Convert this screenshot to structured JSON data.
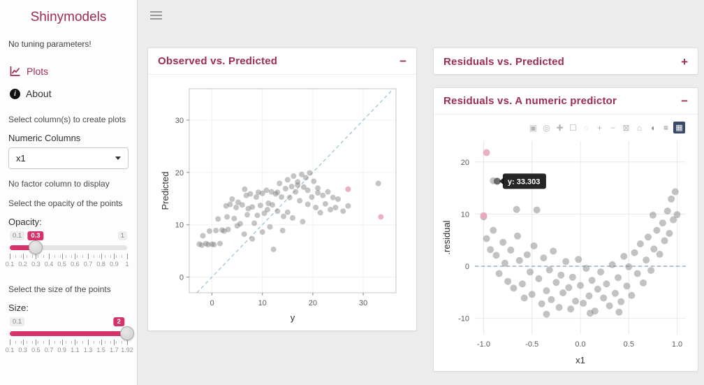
{
  "colors": {
    "accent": "#9e2b56",
    "slider": "#d6336c",
    "plotly_logo": "#3b4a6b"
  },
  "sidebar": {
    "title": "Shinymodels",
    "no_tuning_text": "No tuning parameters!",
    "nav_plots": "Plots",
    "nav_about": "About",
    "select_columns_text": "Select column(s) to create plots",
    "numeric_columns_label": "Numeric Columns",
    "numeric_select_value": "x1",
    "no_factor_text": "No factor column to display",
    "opacity_help_text": "Select the opacity of the points",
    "opacity_label": "Opacity:",
    "opacity_slider": {
      "min_label": "0.1",
      "max_label": "1",
      "value": "0.3",
      "percent": 22,
      "ticks": [
        "0.1",
        "0.2",
        "0.3",
        "0.4",
        "0.5",
        "0.6",
        "0.7",
        "0.8",
        "0.9",
        "1"
      ]
    },
    "size_help_text": "Select the size of the points",
    "size_label": "Size:",
    "size_slider": {
      "min_label": "0.1",
      "max_label": "",
      "value": "2",
      "percent": 100,
      "ticks": [
        "0.1",
        "0.3",
        "0.5",
        "0.7",
        "0.9",
        "1.1",
        "1.3",
        "1.5",
        "1.7",
        "1.92"
      ]
    }
  },
  "panels": [
    {
      "title": "Observed vs. Predicted",
      "collapse_label": "−",
      "collapsed": false
    },
    {
      "title": "Residuals vs. Predicted",
      "collapse_label": "+",
      "collapsed": true
    },
    {
      "title": "Residuals vs. A numeric predictor",
      "collapse_label": "−",
      "collapsed": false
    }
  ],
  "plotly_toolbar": {
    "icons": [
      {
        "name": "camera-icon",
        "glyph": "▣"
      },
      {
        "name": "zoom-icon",
        "glyph": "◎"
      },
      {
        "name": "pan-icon",
        "glyph": "✚"
      },
      {
        "name": "box-select-icon",
        "glyph": "☐"
      },
      {
        "name": "lasso-select-icon",
        "glyph": "◌"
      },
      {
        "name": "zoom-in-icon",
        "glyph": "+"
      },
      {
        "name": "zoom-out-icon",
        "glyph": "−"
      },
      {
        "name": "autoscale-icon",
        "glyph": "⊠"
      },
      {
        "name": "reset-axes-icon",
        "glyph": "⌂"
      },
      {
        "name": "hover-closest-icon",
        "glyph": "◖",
        "shade": "dark-gray"
      },
      {
        "name": "hover-compare-icon",
        "glyph": "≡",
        "shade": "dark-gray"
      },
      {
        "name": "plotly-logo-icon",
        "glyph": "▦",
        "logo": true
      }
    ]
  },
  "chart_data": [
    {
      "type": "scatter",
      "title": "Observed vs. Predicted",
      "xlabel": "y",
      "ylabel": "Predicted",
      "xlim": [
        -4.5,
        36.5
      ],
      "ylim": [
        -3,
        36
      ],
      "xticks": [
        0,
        10,
        20,
        30
      ],
      "xtick_labels": [
        "0",
        "10",
        "20",
        "30"
      ],
      "yticks": [
        0,
        10,
        20,
        30
      ],
      "ytick_labels": [
        "0",
        "10",
        "20",
        "30"
      ],
      "grid": true,
      "grid_color": "#f0f0f0",
      "panel_border": true,
      "tick_marks": true,
      "margins": {
        "l": 46,
        "r": 16,
        "t": 12,
        "b": 46
      },
      "refline": {
        "x1": -3,
        "y1": -3,
        "x2": 36,
        "y2": 36,
        "color": "#9cc3d8"
      },
      "point_color": "#7d7d7d",
      "point_opacity": 0.45,
      "point_radius": 4,
      "points": [
        [
          -2.5,
          6.3
        ],
        [
          -2,
          6.1
        ],
        [
          -1.8,
          7.9
        ],
        [
          -1.2,
          6.4
        ],
        [
          -0.8,
          6.2
        ],
        [
          -0.5,
          8.8
        ],
        [
          0,
          6.3
        ],
        [
          0.4,
          6.2
        ],
        [
          0.8,
          8.9
        ],
        [
          1.2,
          11.1
        ],
        [
          1.6,
          6.4
        ],
        [
          2,
          9
        ],
        [
          2.4,
          8.8
        ],
        [
          2.8,
          13.6
        ],
        [
          3,
          11.5
        ],
        [
          3.2,
          9.1
        ],
        [
          3.6,
          13.9
        ],
        [
          4,
          14.9
        ],
        [
          4.4,
          11.2
        ],
        [
          4.8,
          13.3
        ],
        [
          5,
          9.8
        ],
        [
          5.2,
          14.3
        ],
        [
          5.6,
          10.2
        ],
        [
          6,
          13.8
        ],
        [
          6.4,
          8.2
        ],
        [
          6.5,
          16.8
        ],
        [
          6.8,
          15.6
        ],
        [
          7,
          11.9
        ],
        [
          7.2,
          13.1
        ],
        [
          7.6,
          15.9
        ],
        [
          8,
          13.4
        ],
        [
          8,
          7.3
        ],
        [
          8.4,
          10.3
        ],
        [
          8.8,
          15.3
        ],
        [
          9,
          11.8
        ],
        [
          9.2,
          16.2
        ],
        [
          9.6,
          13.7
        ],
        [
          10,
          16
        ],
        [
          10,
          8.6
        ],
        [
          10.4,
          12.2
        ],
        [
          10.8,
          16.6
        ],
        [
          11,
          12.9
        ],
        [
          11.2,
          14.1
        ],
        [
          11.5,
          9.6
        ],
        [
          11.8,
          16.3
        ],
        [
          12,
          13.8
        ],
        [
          12.2,
          5.3
        ],
        [
          12.6,
          15.9
        ],
        [
          13,
          12.6
        ],
        [
          13,
          16.2
        ],
        [
          13.4,
          17.9
        ],
        [
          13.8,
          15.3
        ],
        [
          14,
          8.9
        ],
        [
          14.2,
          11.6
        ],
        [
          14.6,
          16.9
        ],
        [
          15,
          18.6
        ],
        [
          15,
          12.4
        ],
        [
          15.4,
          15.2
        ],
        [
          15.8,
          17.3
        ],
        [
          16,
          11.3
        ],
        [
          16.2,
          19.3
        ],
        [
          16.6,
          16.3
        ],
        [
          17,
          18.2
        ],
        [
          17,
          17.6
        ],
        [
          17.4,
          14.6
        ],
        [
          17.8,
          19.6
        ],
        [
          18,
          10.6
        ],
        [
          18.2,
          17.2
        ],
        [
          18.6,
          19
        ],
        [
          19,
          16.6
        ],
        [
          19,
          13.9
        ],
        [
          19.4,
          19.9
        ],
        [
          19.8,
          15.3
        ],
        [
          20.2,
          18.3
        ],
        [
          20.6,
          13.3
        ],
        [
          21,
          17
        ],
        [
          21,
          16.1
        ],
        [
          21.5,
          12.3
        ],
        [
          22,
          15.6
        ],
        [
          22.5,
          14
        ],
        [
          23,
          16.3
        ],
        [
          23.5,
          12.9
        ],
        [
          24,
          15.2
        ],
        [
          24.5,
          13.3
        ],
        [
          25,
          14.9
        ],
        [
          26,
          12.6
        ],
        [
          27,
          13.6
        ],
        [
          33,
          17.9
        ]
      ],
      "highlight_color": "#e9a7bc",
      "highlight_points": [
        [
          27,
          16.8
        ],
        [
          33.5,
          11.5
        ]
      ]
    },
    {
      "type": "scatter",
      "title": "Residuals vs. A numeric predictor",
      "xlabel": "x1",
      "ylabel": ".residual",
      "xlim": [
        -1.09,
        1.09
      ],
      "ylim": [
        -13,
        24
      ],
      "xticks": [
        -1,
        -0.5,
        0,
        0.5,
        1
      ],
      "xtick_labels": [
        "-1.0",
        "-0.5",
        "0.0",
        "0.5",
        "1.0"
      ],
      "yticks": [
        -10,
        0,
        10,
        20
      ],
      "ytick_labels": [
        "-10",
        "0",
        "10",
        "20"
      ],
      "grid": true,
      "grid_color": "#e8e8e8",
      "panel_border": false,
      "tick_marks": false,
      "margins": {
        "l": 52,
        "r": 10,
        "t": 8,
        "b": 48
      },
      "refline": {
        "x1": -1.09,
        "y1": 0,
        "x2": 1.09,
        "y2": 0,
        "color": "#7aa3c0"
      },
      "point_color": "#777777",
      "point_opacity": 0.45,
      "point_radius": 5,
      "points": [
        [
          -1,
          9.5
        ],
        [
          -0.97,
          5.3
        ],
        [
          -0.93,
          3.2
        ],
        [
          -0.9,
          6.9
        ],
        [
          -0.9,
          16.4
        ],
        [
          -0.87,
          2.1
        ],
        [
          -0.84,
          -1.4
        ],
        [
          -0.8,
          4.6
        ],
        [
          -0.78,
          0.6
        ],
        [
          -0.75,
          -2.9
        ],
        [
          -0.72,
          3.1
        ],
        [
          -0.69,
          -4.2
        ],
        [
          -0.66,
          10.9
        ],
        [
          -0.65,
          5.8
        ],
        [
          -0.63,
          1.1
        ],
        [
          -0.6,
          -3.4
        ],
        [
          -0.58,
          -6.1
        ],
        [
          -0.55,
          2.2
        ],
        [
          -0.52,
          -1.1
        ],
        [
          -0.5,
          -5.4
        ],
        [
          -0.48,
          3.9
        ],
        [
          -0.45,
          10.8
        ],
        [
          -0.43,
          -2.4
        ],
        [
          -0.4,
          -7.2
        ],
        [
          -0.38,
          1.6
        ],
        [
          -0.35,
          -4.7
        ],
        [
          -0.35,
          -9.2
        ],
        [
          -0.32,
          -0.7
        ],
        [
          -0.3,
          -6.4
        ],
        [
          -0.28,
          2.9
        ],
        [
          -0.25,
          -3.1
        ],
        [
          -0.22,
          -7.9
        ],
        [
          -0.2,
          -1.7
        ],
        [
          -0.18,
          -5.1
        ],
        [
          -0.15,
          0.9
        ],
        [
          -0.12,
          -4.1
        ],
        [
          -0.1,
          -8.2
        ],
        [
          -0.08,
          -2.1
        ],
        [
          -0.05,
          -6.7
        ],
        [
          -0.02,
          1.3
        ],
        [
          0,
          -3.7
        ],
        [
          0.03,
          -7.1
        ],
        [
          0.06,
          -0.4
        ],
        [
          0.09,
          -5.7
        ],
        [
          0.1,
          -9
        ],
        [
          0.12,
          -2.7
        ],
        [
          0.15,
          -8.6
        ],
        [
          0.18,
          -4.4
        ],
        [
          0.21,
          -1.1
        ],
        [
          0.24,
          -6.1
        ],
        [
          0.27,
          -3.4
        ],
        [
          0.3,
          -7.6
        ],
        [
          0.33,
          0.3
        ],
        [
          0.36,
          -5.2
        ],
        [
          0.39,
          -2.2
        ],
        [
          0.4,
          -8.8
        ],
        [
          0.42,
          -6.8
        ],
        [
          0.45,
          1.9
        ],
        [
          0.48,
          -3.8
        ],
        [
          0.5,
          -0.1
        ],
        [
          0.53,
          -5.6
        ],
        [
          0.56,
          2.6
        ],
        [
          0.59,
          -1.4
        ],
        [
          0.62,
          4.3
        ],
        [
          0.65,
          -3.2
        ],
        [
          0.68,
          1.2
        ],
        [
          0.7,
          5.6
        ],
        [
          0.73,
          -0.8
        ],
        [
          0.75,
          9.8
        ],
        [
          0.76,
          3.3
        ],
        [
          0.79,
          6.9
        ],
        [
          0.82,
          2.3
        ],
        [
          0.85,
          8.3
        ],
        [
          0.87,
          4.9
        ],
        [
          0.9,
          10.6
        ],
        [
          0.92,
          6.3
        ],
        [
          0.94,
          12.9
        ],
        [
          0.96,
          8.9
        ],
        [
          0.98,
          14.3
        ],
        [
          1,
          9.9
        ]
      ],
      "highlight_color": "#e9a7bc",
      "highlight_points": [
        [
          -0.97,
          21.8
        ],
        [
          -1,
          9.7
        ]
      ],
      "tooltip": {
        "x": -0.86,
        "y": 16.3,
        "label": "y: 33.303"
      }
    }
  ]
}
